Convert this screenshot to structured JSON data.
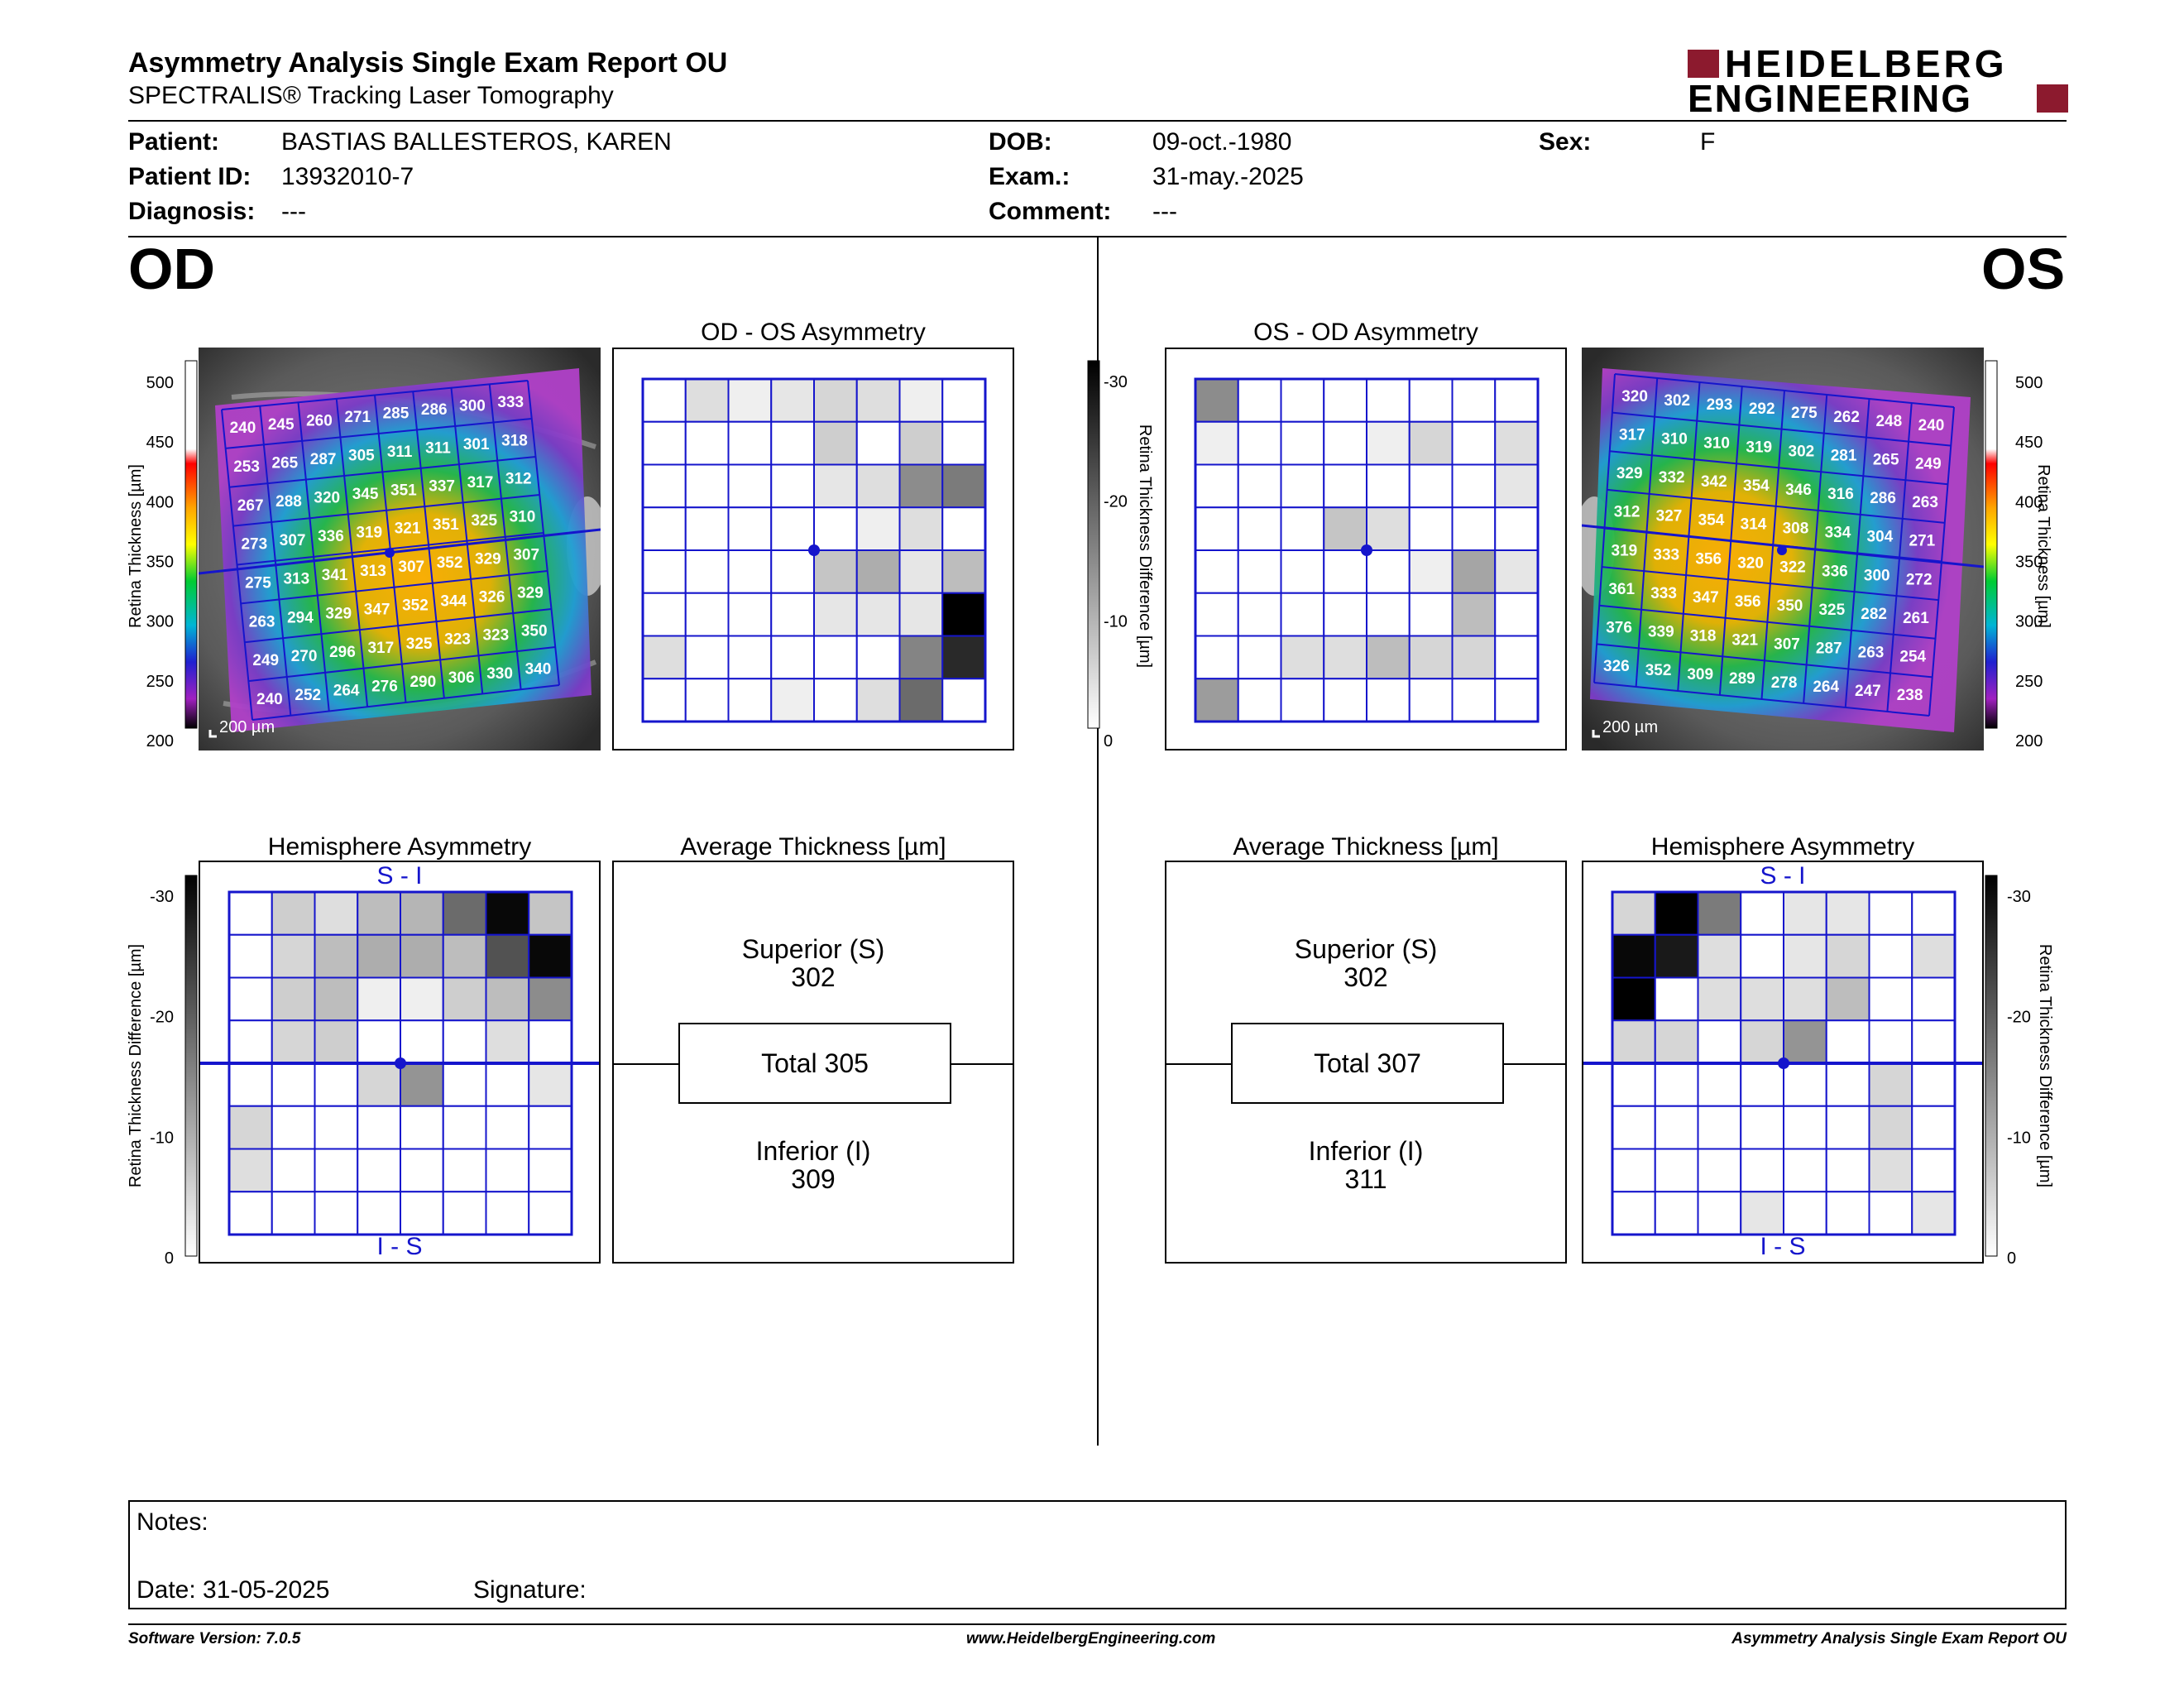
{
  "header": {
    "title": "Asymmetry Analysis Single Exam Report OU",
    "subtitle": "SPECTRALIS® Tracking Laser Tomography",
    "logo_line1": "HEIDELBERG",
    "logo_line2": "ENGINEERING"
  },
  "patient": {
    "patient_label": "Patient:",
    "patient_name": "BASTIAS BALLESTEROS, KAREN",
    "id_label": "Patient ID:",
    "id": "13932010-7",
    "diagnosis_label": "Diagnosis:",
    "diagnosis": "---",
    "dob_label": "DOB:",
    "dob": "09-oct.-1980",
    "exam_label": "Exam.:",
    "exam": "31-may.-2025",
    "comment_label": "Comment:",
    "comment": "---",
    "sex_label": "Sex:",
    "sex": "F"
  },
  "od": {
    "eye": "OD",
    "scale_bar": "200 µm",
    "thickness_axis_label": "Retina  Thickness [µm]",
    "thickness_ticks": [
      "500",
      "450",
      "400",
      "350",
      "300",
      "250",
      "200"
    ],
    "thickness_grid": [
      [
        240,
        245,
        260,
        271,
        285,
        286,
        300,
        333
      ],
      [
        253,
        265,
        287,
        305,
        311,
        311,
        301,
        318
      ],
      [
        267,
        288,
        320,
        345,
        351,
        337,
        317,
        312
      ],
      [
        273,
        307,
        336,
        319,
        321,
        351,
        325,
        310
      ],
      [
        275,
        313,
        341,
        313,
        307,
        352,
        329,
        307
      ],
      [
        263,
        294,
        329,
        347,
        352,
        344,
        326,
        329
      ],
      [
        249,
        270,
        296,
        317,
        325,
        323,
        323,
        350
      ],
      [
        240,
        252,
        264,
        276,
        290,
        306,
        330,
        340
      ]
    ],
    "asym_title": "OD - OS Asymmetry",
    "asym_grid": [
      [
        0,
        4,
        2,
        3,
        5,
        4,
        2,
        0
      ],
      [
        0,
        0,
        0,
        0,
        6,
        0,
        6,
        0
      ],
      [
        0,
        0,
        0,
        0,
        3,
        4,
        14,
        16
      ],
      [
        0,
        0,
        0,
        0,
        0,
        2,
        4,
        0
      ],
      [
        0,
        0,
        0,
        0,
        7,
        10,
        3,
        8
      ],
      [
        0,
        0,
        0,
        0,
        3,
        3,
        3,
        31
      ],
      [
        4,
        0,
        0,
        0,
        0,
        0,
        15,
        26
      ],
      [
        0,
        0,
        0,
        2,
        0,
        4,
        18,
        0
      ]
    ],
    "hemi_title": "Hemisphere Asymmetry",
    "hemi_top_label": "S - I",
    "hemi_bottom_label": "I - S",
    "diff_axis_label": "Retina Thickness Difference [µm]",
    "diff_ticks": [
      "-30",
      "-20",
      "-10",
      "0"
    ],
    "hemi_grid": [
      [
        0,
        6,
        4,
        8,
        9,
        18,
        30,
        7
      ],
      [
        0,
        5,
        8,
        10,
        10,
        8,
        21,
        30
      ],
      [
        0,
        6,
        8,
        2,
        2,
        6,
        8,
        14
      ],
      [
        0,
        5,
        6,
        0,
        0,
        0,
        4,
        0
      ],
      [
        0,
        0,
        0,
        5,
        13,
        0,
        0,
        3
      ],
      [
        5,
        0,
        0,
        0,
        0,
        0,
        0,
        0
      ],
      [
        4,
        0,
        0,
        0,
        0,
        0,
        0,
        0
      ],
      [
        0,
        0,
        0,
        0,
        0,
        0,
        0,
        0
      ]
    ],
    "avg_title": "Average Thickness [µm]",
    "superior_label": "Superior (S)",
    "superior_value": "302",
    "total_label": "Total 305",
    "inferior_label": "Inferior (I)",
    "inferior_value": "309"
  },
  "os": {
    "eye": "OS",
    "scale_bar": "200 µm",
    "thickness_axis_label": "Retina  Thickness [µm]",
    "thickness_ticks": [
      "500",
      "450",
      "400",
      "350",
      "300",
      "250",
      "200"
    ],
    "thickness_grid": [
      [
        320,
        302,
        293,
        292,
        275,
        262,
        248,
        240
      ],
      [
        317,
        310,
        310,
        319,
        302,
        281,
        265,
        249
      ],
      [
        329,
        332,
        342,
        354,
        346,
        316,
        286,
        263
      ],
      [
        312,
        327,
        354,
        314,
        308,
        334,
        304,
        271
      ],
      [
        319,
        333,
        356,
        320,
        322,
        336,
        300,
        272
      ],
      [
        361,
        333,
        347,
        356,
        350,
        325,
        282,
        261
      ],
      [
        376,
        339,
        318,
        321,
        307,
        287,
        263,
        254
      ],
      [
        326,
        352,
        309,
        289,
        278,
        264,
        247,
        238
      ]
    ],
    "asym_title": "OS - OD Asymmetry",
    "asym_grid": [
      [
        14,
        0,
        0,
        0,
        0,
        0,
        0,
        0
      ],
      [
        2,
        0,
        0,
        0,
        2,
        5,
        0,
        4
      ],
      [
        0,
        0,
        0,
        0,
        0,
        0,
        0,
        3
      ],
      [
        0,
        0,
        0,
        7,
        4,
        0,
        0,
        0
      ],
      [
        0,
        0,
        0,
        0,
        0,
        2,
        11,
        3
      ],
      [
        0,
        0,
        0,
        0,
        0,
        0,
        8,
        0
      ],
      [
        0,
        0,
        4,
        4,
        8,
        5,
        5,
        0
      ],
      [
        12,
        0,
        0,
        0,
        0,
        0,
        0,
        0
      ]
    ],
    "hemi_title": "Hemisphere Asymmetry",
    "hemi_top_label": "S - I",
    "hemi_bottom_label": "I - S",
    "diff_axis_label": "Retina Thickness Difference [µm]",
    "diff_ticks": [
      "-30",
      "-20",
      "-10",
      "0"
    ],
    "hemi_grid": [
      [
        5,
        31,
        16,
        0,
        3,
        3,
        0,
        0
      ],
      [
        30,
        28,
        4,
        0,
        3,
        5,
        0,
        4
      ],
      [
        31,
        0,
        4,
        4,
        4,
        8,
        0,
        0
      ],
      [
        5,
        5,
        0,
        5,
        13,
        0,
        0,
        0
      ],
      [
        0,
        0,
        0,
        0,
        0,
        0,
        5,
        0
      ],
      [
        0,
        0,
        0,
        0,
        0,
        0,
        5,
        0
      ],
      [
        0,
        0,
        0,
        0,
        0,
        0,
        4,
        0
      ],
      [
        0,
        0,
        0,
        3,
        0,
        0,
        0,
        3
      ]
    ],
    "avg_title": "Average Thickness [µm]",
    "superior_label": "Superior (S)",
    "superior_value": "302",
    "total_label": "Total 307",
    "inferior_label": "Inferior (I)",
    "inferior_value": "311"
  },
  "notes": {
    "notes_label": "Notes:",
    "date_label": "Date: 31-05-2025",
    "signature_label": "Signature:"
  },
  "footer": {
    "software": "Software Version: 7.0.5",
    "website": "www.HeidelbergEngineering.com",
    "report_name": "Asymmetry Analysis Single Exam Report OU"
  },
  "colors": {
    "grid_blue": "#1515cc",
    "logo_red": "#8c1a2e"
  }
}
